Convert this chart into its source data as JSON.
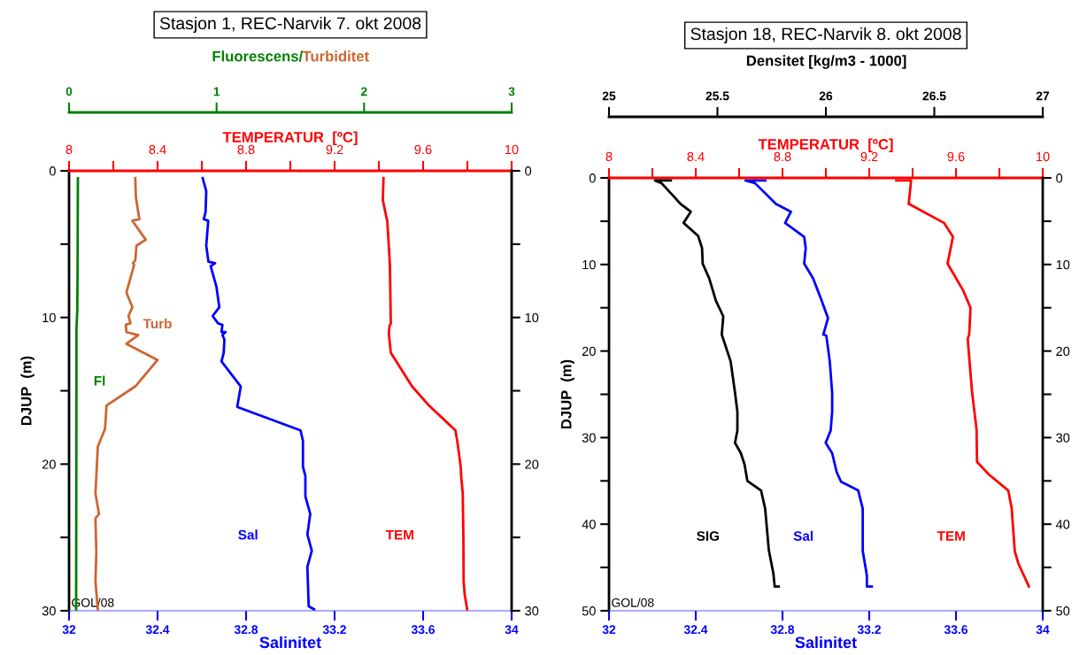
{
  "chart_data": [
    {
      "type": "line",
      "title": "Stasjon 1, REC-Narvik 7. okt 2008",
      "xlabel": "Salinitet",
      "x2label": "TEMPERATUR  [ºC]",
      "ylabel": "DJUP  (m)",
      "xlim": [
        32,
        34
      ],
      "xticks": [
        32,
        32.4,
        32.8,
        33.2,
        33.6,
        34
      ],
      "x2lim": [
        8,
        10
      ],
      "x2ticks": [
        8,
        {
          "value": 8.2,
          "label": null
        },
        8.4,
        {
          "value": 8.6,
          "label": null
        },
        8.8,
        {
          "value": 9.0,
          "label": null
        },
        9.2,
        {
          "value": 9.4,
          "label": null
        },
        9.6,
        {
          "value": 9.8,
          "label": null
        },
        10
      ],
      "ylim": [
        30,
        0
      ],
      "yticks": [
        0,
        {
          "value": 5,
          "label": null
        },
        10,
        {
          "value": 15,
          "label": null
        },
        20,
        {
          "value": 25,
          "label": null
        },
        30
      ],
      "y2lim": [
        30,
        0
      ],
      "y2ticks": [
        0,
        {
          "value": 5,
          "label": null
        },
        10,
        {
          "value": 15,
          "label": null
        },
        20,
        {
          "value": 25,
          "label": null
        },
        30
      ],
      "annotations": [
        "GOL/08"
      ],
      "series": [
        {
          "name": "Sal",
          "color": "#0000ff",
          "x": [
            32.604,
            32.62,
            32.617,
            32.609,
            32.629,
            32.62,
            32.63,
            32.66,
            32.64,
            32.666,
            32.679,
            32.649,
            32.673,
            32.693,
            32.689,
            32.707,
            32.693,
            32.702,
            32.699,
            32.689,
            32.776,
            32.76,
            33.046,
            33.057,
            33.057,
            33.068,
            33.068,
            33.09,
            33.077,
            33.097,
            33.077,
            33.083,
            33.107
          ],
          "values": [
            0.5,
            1.4,
            2.8,
            3.3,
            3.4,
            5.1,
            6.2,
            6.3,
            6.5,
            7.9,
            9.3,
            9.9,
            10.4,
            10.5,
            11.0,
            11.0,
            11.2,
            11.5,
            12.4,
            13.0,
            14.7,
            16.1,
            17.7,
            18.4,
            20.2,
            20.8,
            22.2,
            23.4,
            24.8,
            25.9,
            27.0,
            29.7,
            29.9
          ]
        },
        {
          "name": "TEM",
          "color": "#ff0000",
          "axis": "x2",
          "x": [
            9.421,
            9.418,
            9.436,
            9.438,
            9.448,
            9.45,
            9.454,
            9.448,
            9.445,
            9.454,
            9.55,
            9.626,
            9.746,
            9.756,
            9.77,
            9.772,
            9.779,
            9.782,
            9.783,
            9.788,
            9.799
          ],
          "values": [
            0.5,
            2.0,
            3.3,
            3.4,
            5.9,
            6.5,
            10.4,
            10.6,
            11.1,
            12.4,
            14.7,
            16.0,
            17.7,
            18.6,
            20.2,
            20.8,
            22.0,
            25.0,
            28.0,
            28.9,
            29.9
          ]
        }
      ]
    },
    {
      "type": "line",
      "xlabel": "Fluorescens/Turbiditet",
      "tick_labels": "x",
      "xlim": [
        0,
        3
      ],
      "xticks": [
        0,
        1,
        2,
        3
      ],
      "ylim": [
        30,
        0
      ],
      "series": [
        {
          "name": "Fl",
          "color": "#008000",
          "x": [
            0.06,
            0.058,
            0.056,
            0.05,
            0.05,
            0.048
          ],
          "values": [
            0.5,
            6.5,
            9.5,
            10.8,
            15.2,
            29.9
          ]
        },
        {
          "name": "Turb",
          "color": "#cc6633",
          "x": [
            0.449,
            0.453,
            0.477,
            0.429,
            0.52,
            0.457,
            0.449,
            0.433,
            0.441,
            0.389,
            0.429,
            0.403,
            0.417,
            0.385,
            0.389,
            0.469,
            0.389,
            0.6,
            0.449,
            0.254,
            0.244,
            0.195,
            0.179,
            0.203,
            0.179,
            0.185,
            0.179,
            0.195
          ],
          "values": [
            0.5,
            1.8,
            3.3,
            3.4,
            4.7,
            5.1,
            6.1,
            6.3,
            6.4,
            8.3,
            9.3,
            9.9,
            10.4,
            10.5,
            11.0,
            11.2,
            11.8,
            12.9,
            14.7,
            16.0,
            17.6,
            18.8,
            22.0,
            23.4,
            23.7,
            26.0,
            28.0,
            29.9
          ]
        }
      ]
    },
    {
      "type": "line",
      "title": "Stasjon 18, REC-Narvik 8. okt 2008",
      "xlabel": "Salinitet",
      "x2label": "TEMPERATUR  [ºC]",
      "ylabel": "DJUP  (m)",
      "xlim": [
        32,
        34
      ],
      "xticks": [
        32,
        32.4,
        32.8,
        33.2,
        33.6,
        34
      ],
      "x2lim": [
        8,
        10
      ],
      "x2ticks": [
        8,
        {
          "value": 8.2,
          "label": null
        },
        8.4,
        {
          "value": 8.6,
          "label": null
        },
        8.8,
        {
          "value": 9.0,
          "label": null
        },
        9.2,
        {
          "value": 9.4,
          "label": null
        },
        9.6,
        {
          "value": 9.8,
          "label": null
        },
        10
      ],
      "ylim": [
        50,
        0
      ],
      "yticks": [
        0,
        {
          "value": 5,
          "label": null
        },
        10,
        {
          "value": 15,
          "label": null
        },
        20,
        {
          "value": 25,
          "label": null
        },
        30,
        {
          "value": 35,
          "label": null
        },
        40,
        {
          "value": 45,
          "label": null
        },
        50
      ],
      "y2lim": [
        50,
        0
      ],
      "y2ticks": [
        0,
        {
          "value": 5,
          "label": null
        },
        10,
        {
          "value": 15,
          "label": null
        },
        20,
        {
          "value": 25,
          "label": null
        },
        30,
        {
          "value": 35,
          "label": null
        },
        40,
        {
          "value": 45,
          "label": null
        },
        50
      ],
      "annotations": [
        "GOL/08"
      ],
      "series": [
        {
          "name": "Sal",
          "color": "#0000ff",
          "x": [
            32.721,
            32.629,
            32.673,
            32.769,
            32.839,
            32.812,
            32.9,
            32.907,
            32.9,
            32.941,
            32.975,
            33.01,
            32.988,
            33.002,
            33.018,
            33.029,
            33.029,
            33.022,
            32.999,
            33.029,
            33.05,
            33.07,
            33.149,
            33.17,
            33.17,
            33.189,
            33.189,
            33.212
          ],
          "values": [
            0.3,
            0.3,
            0.6,
            3.0,
            3.9,
            5.2,
            6.8,
            8.1,
            9.9,
            11.6,
            13.8,
            16.2,
            18.1,
            18.2,
            21.2,
            24.8,
            27.0,
            29.2,
            30.6,
            31.8,
            34.0,
            35.1,
            36.1,
            38.2,
            43.1,
            45.9,
            47.2,
            47.2
          ]
        },
        {
          "name": "TEM",
          "color": "#ff0000",
          "axis": "x2",
          "x": [
            9.325,
            9.393,
            9.382,
            9.545,
            9.586,
            9.561,
            9.633,
            9.667,
            9.661,
            9.654,
            9.674,
            9.695,
            9.697,
            9.749,
            9.841,
            9.857,
            9.871,
            9.887,
            9.936
          ],
          "values": [
            0.3,
            0.3,
            3.0,
            5.2,
            6.8,
            9.9,
            13.0,
            15.0,
            18.1,
            18.6,
            24.7,
            29.1,
            32.8,
            34.2,
            36.1,
            38.2,
            43.1,
            44.5,
            47.2
          ]
        }
      ]
    },
    {
      "type": "line",
      "xlabel": "Densitet [kg/m3 - 1000]",
      "tick_labels": "x",
      "xlim": [
        25,
        27
      ],
      "xticks": [
        25,
        25.5,
        26,
        26.5,
        27
      ],
      "ylim": [
        50,
        0
      ],
      "series": [
        {
          "name": "SIG",
          "color": "#000000",
          "x": [
            25.285,
            25.212,
            25.242,
            25.33,
            25.377,
            25.344,
            25.411,
            25.429,
            25.432,
            25.462,
            25.493,
            25.527,
            25.52,
            25.561,
            25.581,
            25.592,
            25.592,
            25.581,
            25.608,
            25.625,
            25.638,
            25.701,
            25.72,
            25.737,
            25.758,
            25.764,
            25.782
          ],
          "values": [
            0.3,
            0.3,
            0.6,
            3.0,
            3.9,
            5.2,
            6.7,
            8.1,
            9.9,
            11.6,
            14.2,
            16.0,
            18.1,
            21.2,
            24.8,
            27.0,
            29.2,
            30.6,
            31.8,
            33.1,
            35.0,
            36.1,
            38.2,
            43.0,
            45.7,
            47.2,
            47.2
          ]
        }
      ]
    }
  ]
}
